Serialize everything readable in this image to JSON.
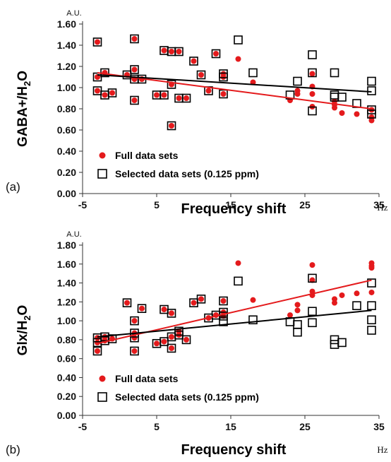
{
  "chart_data": [
    {
      "type": "scatter",
      "panel_label": "(a)",
      "unit_label": "A.U.",
      "ylabel_parts": [
        "GABA+/H",
        "2",
        "O"
      ],
      "xlabel": "Frequency shift",
      "x_unit": "Hz",
      "xlim": [
        -5,
        35
      ],
      "ylim": [
        0,
        1.6
      ],
      "x_ticks": [
        "-5",
        "5",
        "15",
        "25",
        "35"
      ],
      "y_ticks": [
        "0.00",
        "0.20",
        "0.40",
        "0.60",
        "0.80",
        "1.00",
        "1.20",
        "1.40",
        "1.60"
      ],
      "legend": {
        "full": "Full data sets",
        "selected": "Selected data sets (0.125 ppm)",
        "placement": "bottom-left"
      },
      "series": [
        {
          "name": "Full data sets",
          "marker": "circle",
          "color": "#e41a1c",
          "points": [
            [
              -3,
              1.43
            ],
            [
              -3,
              1.1
            ],
            [
              -3,
              0.97
            ],
            [
              -2,
              1.14
            ],
            [
              -2,
              0.93
            ],
            [
              -1,
              0.95
            ],
            [
              1,
              1.12
            ],
            [
              2,
              1.46
            ],
            [
              2,
              1.17
            ],
            [
              2,
              1.08
            ],
            [
              2,
              0.88
            ],
            [
              3,
              1.08
            ],
            [
              5,
              0.93
            ],
            [
              6,
              0.93
            ],
            [
              6,
              1.35
            ],
            [
              7,
              1.34
            ],
            [
              7,
              1.03
            ],
            [
              7,
              0.64
            ],
            [
              8,
              1.34
            ],
            [
              8,
              0.9
            ],
            [
              9,
              0.9
            ],
            [
              10,
              1.25
            ],
            [
              11,
              1.12
            ],
            [
              12,
              0.97
            ],
            [
              13,
              1.32
            ],
            [
              14,
              1.13
            ],
            [
              14,
              1.1
            ],
            [
              14,
              0.94
            ],
            [
              16,
              1.27
            ],
            [
              18,
              1.05
            ],
            [
              23,
              0.88
            ],
            [
              24,
              0.97
            ],
            [
              24,
              0.94
            ],
            [
              26,
              1.13
            ],
            [
              26,
              1.01
            ],
            [
              26,
              0.94
            ],
            [
              26,
              0.82
            ],
            [
              29,
              0.87
            ],
            [
              29,
              0.84
            ],
            [
              29,
              0.81
            ],
            [
              30,
              0.76
            ],
            [
              32,
              0.75
            ],
            [
              34,
              0.79
            ],
            [
              34,
              0.72
            ],
            [
              34,
              0.69
            ]
          ]
        },
        {
          "name": "Selected data sets (0.125 ppm)",
          "marker": "open-square",
          "color": "#000000",
          "points": [
            [
              -3,
              1.43
            ],
            [
              -3,
              1.1
            ],
            [
              -3,
              0.97
            ],
            [
              -2,
              1.14
            ],
            [
              -2,
              0.93
            ],
            [
              -1,
              0.95
            ],
            [
              1,
              1.12
            ],
            [
              2,
              1.46
            ],
            [
              2,
              1.17
            ],
            [
              2,
              1.08
            ],
            [
              2,
              0.88
            ],
            [
              3,
              1.08
            ],
            [
              5,
              0.93
            ],
            [
              6,
              0.93
            ],
            [
              6,
              1.35
            ],
            [
              7,
              1.34
            ],
            [
              7,
              1.03
            ],
            [
              7,
              0.64
            ],
            [
              8,
              1.34
            ],
            [
              8,
              0.9
            ],
            [
              9,
              0.9
            ],
            [
              10,
              1.25
            ],
            [
              11,
              1.12
            ],
            [
              12,
              0.97
            ],
            [
              13,
              1.32
            ],
            [
              14,
              1.13
            ],
            [
              14,
              1.1
            ],
            [
              14,
              0.94
            ],
            [
              16,
              1.45
            ],
            [
              18,
              1.14
            ],
            [
              23,
              0.93
            ],
            [
              24,
              1.06
            ],
            [
              26,
              1.31
            ],
            [
              26,
              1.14
            ],
            [
              26,
              0.78
            ],
            [
              29,
              1.14
            ],
            [
              29,
              0.93
            ],
            [
              29,
              0.91
            ],
            [
              30,
              0.91
            ],
            [
              32,
              0.85
            ],
            [
              34,
              1.06
            ],
            [
              34,
              0.97
            ],
            [
              34,
              0.79
            ],
            [
              34,
              0.75
            ]
          ]
        }
      ],
      "trendlines": [
        {
          "series": "Full data sets",
          "color": "#e41a1c",
          "x": [
            -3,
            34
          ],
          "y": [
            1.14,
            0.8
          ]
        },
        {
          "series": "Selected data sets (0.125 ppm)",
          "color": "#000000",
          "x": [
            -3,
            34
          ],
          "y": [
            1.12,
            0.96
          ]
        }
      ]
    },
    {
      "type": "scatter",
      "panel_label": "(b)",
      "unit_label": "A.U.",
      "ylabel_parts": [
        "Glx/H",
        "2",
        "O"
      ],
      "xlabel": "Frequency shift",
      "x_unit": "Hz",
      "xlim": [
        -5,
        35
      ],
      "ylim": [
        0,
        1.8
      ],
      "x_ticks": [
        "-5",
        "5",
        "15",
        "25",
        "35"
      ],
      "y_ticks": [
        "0.00",
        "0.20",
        "0.40",
        "0.60",
        "0.80",
        "1.00",
        "1.20",
        "1.40",
        "1.60",
        "1.80"
      ],
      "legend": {
        "full": "Full data sets",
        "selected": "Selected data sets (0.125 ppm)",
        "placement": "bottom-left"
      },
      "series": [
        {
          "name": "Full data sets",
          "marker": "circle",
          "color": "#e41a1c",
          "points": [
            [
              -3,
              0.82
            ],
            [
              -3,
              0.77
            ],
            [
              -3,
              0.68
            ],
            [
              -2,
              0.83
            ],
            [
              -2,
              0.79
            ],
            [
              -1,
              0.81
            ],
            [
              1,
              1.19
            ],
            [
              2,
              1.0
            ],
            [
              2,
              0.87
            ],
            [
              2,
              0.82
            ],
            [
              2,
              0.68
            ],
            [
              3,
              1.13
            ],
            [
              5,
              0.76
            ],
            [
              6,
              0.78
            ],
            [
              6,
              1.12
            ],
            [
              7,
              1.08
            ],
            [
              7,
              0.83
            ],
            [
              7,
              0.71
            ],
            [
              8,
              0.89
            ],
            [
              8,
              0.85
            ],
            [
              9,
              0.8
            ],
            [
              10,
              1.19
            ],
            [
              11,
              1.23
            ],
            [
              12,
              1.03
            ],
            [
              13,
              1.06
            ],
            [
              14,
              1.21
            ],
            [
              14,
              1.09
            ],
            [
              14,
              1.05
            ],
            [
              16,
              1.61
            ],
            [
              18,
              1.22
            ],
            [
              23,
              1.06
            ],
            [
              24,
              1.17
            ],
            [
              24,
              1.11
            ],
            [
              26,
              1.59
            ],
            [
              26,
              1.43
            ],
            [
              26,
              1.31
            ],
            [
              26,
              1.27
            ],
            [
              29,
              1.23
            ],
            [
              29,
              1.19
            ],
            [
              30,
              1.27
            ],
            [
              32,
              1.29
            ],
            [
              34,
              1.61
            ],
            [
              34,
              1.58
            ],
            [
              34,
              1.56
            ],
            [
              34,
              1.3
            ]
          ]
        },
        {
          "name": "Selected data sets (0.125 ppm)",
          "marker": "open-square",
          "color": "#000000",
          "points": [
            [
              -3,
              0.82
            ],
            [
              -3,
              0.77
            ],
            [
              -3,
              0.68
            ],
            [
              -2,
              0.83
            ],
            [
              -2,
              0.79
            ],
            [
              -1,
              0.81
            ],
            [
              1,
              1.19
            ],
            [
              2,
              1.0
            ],
            [
              2,
              0.87
            ],
            [
              2,
              0.82
            ],
            [
              2,
              0.68
            ],
            [
              3,
              1.13
            ],
            [
              5,
              0.76
            ],
            [
              6,
              0.78
            ],
            [
              6,
              1.12
            ],
            [
              7,
              1.08
            ],
            [
              7,
              0.83
            ],
            [
              7,
              0.71
            ],
            [
              8,
              0.89
            ],
            [
              8,
              0.85
            ],
            [
              9,
              0.8
            ],
            [
              10,
              1.19
            ],
            [
              11,
              1.23
            ],
            [
              12,
              1.03
            ],
            [
              13,
              1.06
            ],
            [
              14,
              1.21
            ],
            [
              14,
              1.09
            ],
            [
              14,
              1.05
            ],
            [
              14,
              0.99
            ],
            [
              16,
              1.42
            ],
            [
              18,
              1.01
            ],
            [
              23,
              0.99
            ],
            [
              24,
              0.96
            ],
            [
              24,
              0.88
            ],
            [
              26,
              1.45
            ],
            [
              26,
              1.1
            ],
            [
              26,
              0.98
            ],
            [
              29,
              0.8
            ],
            [
              29,
              0.75
            ],
            [
              30,
              0.77
            ],
            [
              32,
              1.16
            ],
            [
              34,
              1.4
            ],
            [
              34,
              1.16
            ],
            [
              34,
              1.01
            ],
            [
              34,
              0.9
            ]
          ]
        }
      ],
      "trendlines": [
        {
          "series": "Full data sets",
          "color": "#e41a1c",
          "x": [
            -3,
            34
          ],
          "y": [
            0.76,
            1.43
          ]
        },
        {
          "series": "Selected data sets (0.125 ppm)",
          "color": "#000000",
          "x": [
            -3,
            34
          ],
          "y": [
            0.83,
            1.11
          ]
        }
      ]
    }
  ]
}
